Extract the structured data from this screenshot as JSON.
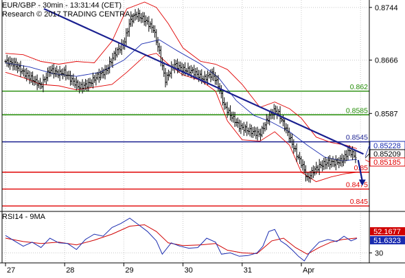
{
  "header": {
    "title": "EUR/GBP - 30min - 13:31:44 (CET)",
    "credit": "Research © 2017 TRADING CENTRAL"
  },
  "colors": {
    "price": "#000000",
    "bollinger": "#e00000",
    "moving_average": "#1a2cb0",
    "trendline": "#1a2090",
    "resistance": "#1e8a00",
    "pivot": "#1a2090",
    "support": "#e00000",
    "arrow": "#0c1a8c",
    "grid": "#c8c8c8",
    "rsi": "#1a2cb0",
    "rsi_ma": "#d00000"
  },
  "chart_data": [
    {
      "type": "candlestick",
      "name": "price-panel",
      "x_tick_labels": [
        "27",
        "28",
        "29",
        "30",
        "31",
        "Apr"
      ],
      "y_ticks": [
        0.8744,
        0.8666,
        0.8587
      ],
      "ylim": [
        0.8445,
        0.8755
      ],
      "y_tick_labels": [
        "0.8744",
        "0.8666",
        "0.8587"
      ],
      "price_tags": [
        {
          "value": 0.85228,
          "label": "0.85228",
          "style": "blue"
        },
        {
          "value": 0.85209,
          "label": "0.85209",
          "style": "black"
        },
        {
          "value": 0.85185,
          "label": "0.85185",
          "style": "red"
        }
      ],
      "levels": [
        {
          "value": 0.862,
          "label": "0.862",
          "kind": "resistance"
        },
        {
          "value": 0.8585,
          "label": "0.8585",
          "kind": "resistance"
        },
        {
          "value": 0.8545,
          "label": "0.8545",
          "kind": "pivot"
        },
        {
          "value": 0.85,
          "label": "0.85",
          "kind": "support"
        },
        {
          "value": 0.8475,
          "label": "0.8475",
          "kind": "support"
        },
        {
          "value": 0.845,
          "label": "0.845",
          "kind": "support"
        }
      ],
      "trendline": {
        "from": [
          0.65,
          0.8742
        ],
        "to": [
          6.05,
          0.8527
        ]
      },
      "arrow": {
        "from": [
          5.96,
          0.8518
        ],
        "to": [
          6.03,
          0.8482
        ]
      },
      "series": [
        {
          "name": "price",
          "values": [
            [
              0.0,
              0.8664
            ],
            [
              0.15,
              0.866
            ],
            [
              0.3,
              0.8648
            ],
            [
              0.45,
              0.8638
            ],
            [
              0.6,
              0.8628
            ],
            [
              0.75,
              0.8652
            ],
            [
              0.9,
              0.8646
            ],
            [
              1.0,
              0.8648
            ],
            [
              1.1,
              0.8638
            ],
            [
              1.25,
              0.8626
            ],
            [
              1.4,
              0.863
            ],
            [
              1.55,
              0.8642
            ],
            [
              1.7,
              0.865
            ],
            [
              1.85,
              0.8676
            ],
            [
              2.0,
              0.869
            ],
            [
              2.1,
              0.8722
            ],
            [
              2.2,
              0.8734
            ],
            [
              2.35,
              0.8726
            ],
            [
              2.5,
              0.8712
            ],
            [
              2.6,
              0.8678
            ],
            [
              2.7,
              0.8636
            ],
            [
              2.85,
              0.866
            ],
            [
              3.0,
              0.8652
            ],
            [
              3.15,
              0.865
            ],
            [
              3.35,
              0.8638
            ],
            [
              3.5,
              0.8646
            ],
            [
              3.6,
              0.8628
            ],
            [
              3.7,
              0.8598
            ],
            [
              3.8,
              0.8585
            ],
            [
              3.95,
              0.8568
            ],
            [
              4.1,
              0.8562
            ],
            [
              4.3,
              0.8556
            ],
            [
              4.45,
              0.8582
            ],
            [
              4.55,
              0.8592
            ],
            [
              4.62,
              0.8586
            ],
            [
              4.72,
              0.8568
            ],
            [
              4.82,
              0.8548
            ],
            [
              4.92,
              0.8526
            ],
            [
              5.02,
              0.851
            ],
            [
              5.1,
              0.849
            ],
            [
              5.2,
              0.8502
            ],
            [
              5.32,
              0.851
            ],
            [
              5.45,
              0.8515
            ],
            [
              5.58,
              0.8514
            ],
            [
              5.7,
              0.8518
            ],
            [
              5.8,
              0.8532
            ],
            [
              5.88,
              0.8526
            ],
            [
              5.94,
              0.8521
            ]
          ]
        },
        {
          "name": "bollinger-upper",
          "values": [
            [
              0.0,
              0.8676
            ],
            [
              0.3,
              0.8674
            ],
            [
              0.6,
              0.8664
            ],
            [
              0.9,
              0.866
            ],
            [
              1.2,
              0.8664
            ],
            [
              1.5,
              0.8662
            ],
            [
              1.8,
              0.8694
            ],
            [
              2.05,
              0.8742
            ],
            [
              2.35,
              0.8752
            ],
            [
              2.55,
              0.8744
            ],
            [
              2.75,
              0.872
            ],
            [
              3.0,
              0.8684
            ],
            [
              3.3,
              0.8664
            ],
            [
              3.55,
              0.866
            ],
            [
              3.75,
              0.8652
            ],
            [
              4.0,
              0.863
            ],
            [
              4.3,
              0.8596
            ],
            [
              4.55,
              0.8604
            ],
            [
              4.8,
              0.8594
            ],
            [
              5.0,
              0.858
            ],
            [
              5.25,
              0.8552
            ],
            [
              5.5,
              0.8544
            ],
            [
              5.75,
              0.854
            ],
            [
              5.94,
              0.8535
            ]
          ]
        },
        {
          "name": "bollinger-lower",
          "values": [
            [
              0.0,
              0.8648
            ],
            [
              0.3,
              0.864
            ],
            [
              0.6,
              0.863
            ],
            [
              0.9,
              0.8628
            ],
            [
              1.2,
              0.8622
            ],
            [
              1.5,
              0.8626
            ],
            [
              1.8,
              0.863
            ],
            [
              2.05,
              0.8648
            ],
            [
              2.35,
              0.8672
            ],
            [
              2.55,
              0.8676
            ],
            [
              2.75,
              0.866
            ],
            [
              3.0,
              0.8644
            ],
            [
              3.3,
              0.8636
            ],
            [
              3.55,
              0.862
            ],
            [
              3.75,
              0.8576
            ],
            [
              4.0,
              0.8548
            ],
            [
              4.3,
              0.8546
            ],
            [
              4.55,
              0.856
            ],
            [
              4.8,
              0.854
            ],
            [
              5.0,
              0.85
            ],
            [
              5.25,
              0.8486
            ],
            [
              5.5,
              0.8493
            ],
            [
              5.75,
              0.8498
            ],
            [
              5.94,
              0.85
            ]
          ]
        },
        {
          "name": "moving-average",
          "values": [
            [
              0.0,
              0.8662
            ],
            [
              0.4,
              0.8656
            ],
            [
              0.8,
              0.8646
            ],
            [
              1.2,
              0.8642
            ],
            [
              1.6,
              0.8648
            ],
            [
              2.0,
              0.8666
            ],
            [
              2.3,
              0.869
            ],
            [
              2.6,
              0.8696
            ],
            [
              2.9,
              0.868
            ],
            [
              3.3,
              0.866
            ],
            [
              3.6,
              0.864
            ],
            [
              3.9,
              0.8606
            ],
            [
              4.2,
              0.8584
            ],
            [
              4.5,
              0.8574
            ],
            [
              4.8,
              0.856
            ],
            [
              5.1,
              0.854
            ],
            [
              5.4,
              0.8522
            ],
            [
              5.7,
              0.8517
            ],
            [
              5.94,
              0.8519
            ]
          ]
        }
      ]
    },
    {
      "type": "line",
      "name": "rsi-panel",
      "label": "RSI14 - 9MA",
      "y_ticks": [
        30
      ],
      "ylim": [
        15,
        90
      ],
      "y_tick_labels": [
        "30"
      ],
      "value_tags": [
        {
          "value": 52.1677,
          "label": "52.1677",
          "style": "red"
        },
        {
          "value": 51.6323,
          "label": "51.6323",
          "style": "blue"
        }
      ],
      "series": [
        {
          "name": "RSI14",
          "values": [
            [
              0.0,
              56
            ],
            [
              0.15,
              48
            ],
            [
              0.3,
              40
            ],
            [
              0.45,
              46
            ],
            [
              0.6,
              38
            ],
            [
              0.75,
              52
            ],
            [
              0.9,
              45
            ],
            [
              1.05,
              44
            ],
            [
              1.2,
              35
            ],
            [
              1.35,
              50
            ],
            [
              1.5,
              58
            ],
            [
              1.65,
              55
            ],
            [
              1.8,
              68
            ],
            [
              1.95,
              74
            ],
            [
              2.1,
              82
            ],
            [
              2.25,
              72
            ],
            [
              2.4,
              62
            ],
            [
              2.55,
              48
            ],
            [
              2.65,
              28
            ],
            [
              2.8,
              45
            ],
            [
              2.95,
              40
            ],
            [
              3.1,
              37
            ],
            [
              3.25,
              38
            ],
            [
              3.4,
              52
            ],
            [
              3.55,
              46
            ],
            [
              3.65,
              28
            ],
            [
              3.8,
              30
            ],
            [
              3.95,
              25
            ],
            [
              4.1,
              26
            ],
            [
              4.25,
              30
            ],
            [
              4.35,
              40
            ],
            [
              4.45,
              62
            ],
            [
              4.55,
              65
            ],
            [
              4.65,
              48
            ],
            [
              4.75,
              42
            ],
            [
              4.85,
              34
            ],
            [
              4.95,
              25
            ],
            [
              5.05,
              18
            ],
            [
              5.15,
              32
            ],
            [
              5.3,
              46
            ],
            [
              5.45,
              50
            ],
            [
              5.6,
              47
            ],
            [
              5.72,
              55
            ],
            [
              5.84,
              48
            ],
            [
              5.94,
              51.6323
            ]
          ]
        },
        {
          "name": "9MA",
          "values": [
            [
              0.0,
              52
            ],
            [
              0.3,
              47
            ],
            [
              0.6,
              44
            ],
            [
              0.9,
              46
            ],
            [
              1.2,
              42
            ],
            [
              1.5,
              49
            ],
            [
              1.8,
              58
            ],
            [
              2.1,
              70
            ],
            [
              2.35,
              72
            ],
            [
              2.55,
              62
            ],
            [
              2.75,
              45
            ],
            [
              3.0,
              41
            ],
            [
              3.3,
              42
            ],
            [
              3.55,
              44
            ],
            [
              3.75,
              34
            ],
            [
              4.0,
              30
            ],
            [
              4.25,
              29
            ],
            [
              4.5,
              48
            ],
            [
              4.7,
              52
            ],
            [
              4.9,
              38
            ],
            [
              5.1,
              28
            ],
            [
              5.3,
              38
            ],
            [
              5.5,
              46
            ],
            [
              5.7,
              50
            ],
            [
              5.94,
              52.1677
            ]
          ]
        }
      ]
    }
  ]
}
